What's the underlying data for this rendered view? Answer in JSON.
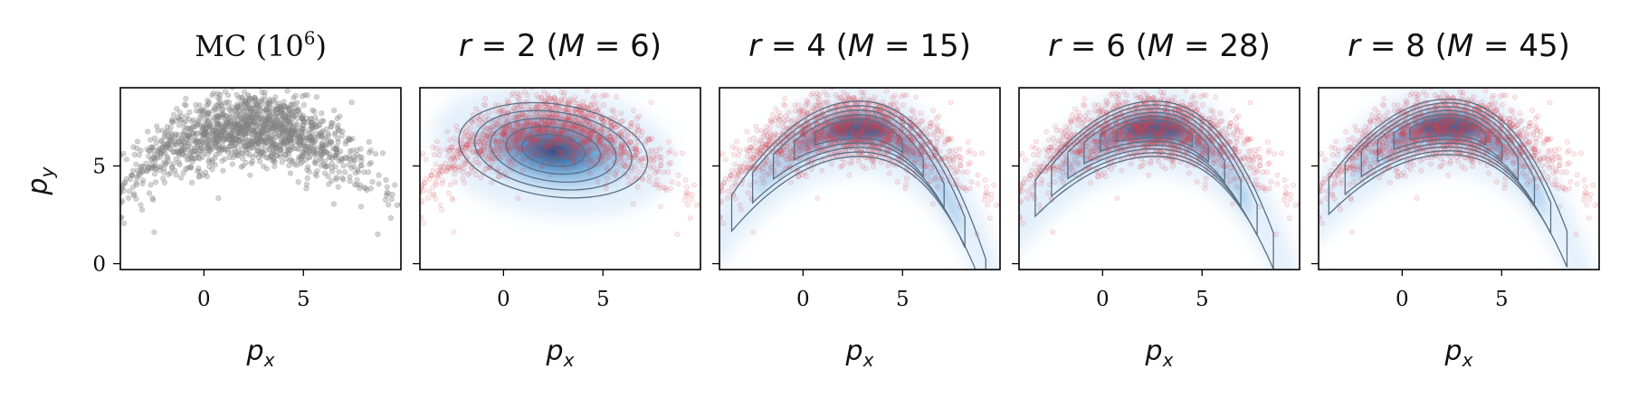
{
  "xlabel_base": "p",
  "xlabel_sub": "x",
  "ylabel_base": "p",
  "ylabel_sub": "y",
  "colors": {
    "mc_points": "#8c8c8c",
    "sample_points": "#d9404a",
    "density_fill": "#1f6fb5",
    "contour": "#5a6f86",
    "frame": "#000000"
  },
  "chart_data": [
    {
      "type": "scatter",
      "title": "MC (10",
      "title_sup": "6",
      "title_end": ")",
      "xlim": [
        -4.2,
        9.9
      ],
      "ylim": [
        -0.3,
        9.0
      ],
      "xticks": [
        0,
        5
      ],
      "yticks": [
        0,
        5
      ],
      "series": [
        {
          "style": "mc_points",
          "x": [],
          "y": []
        }
      ],
      "n_points": 1500,
      "distribution": "banana: x = 2.3 + 3.1*u, y = 7.0 + 0.9*v - 0.07*(x-2.3)^2"
    },
    {
      "type": "scatter",
      "title": "r = 2 (M = 6)",
      "title_parts": {
        "r": "2",
        "M": "6"
      },
      "xlim": [
        -4.2,
        9.9
      ],
      "ylim": [
        -0.3,
        9.0
      ],
      "xticks": [
        0,
        5
      ],
      "yticks": [
        0,
        5
      ],
      "density": {
        "shape": "ellipse",
        "center": [
          2.5,
          5.8
        ],
        "sx": 3.5,
        "sy": 1.5,
        "rotation_deg": -8
      },
      "contours": 6
    },
    {
      "type": "scatter",
      "title": "r = 4 (M = 15)",
      "title_parts": {
        "r": "4",
        "M": "15"
      },
      "xlim": [
        -4.2,
        9.9
      ],
      "ylim": [
        -0.3,
        9.0
      ],
      "xticks": [
        0,
        5
      ],
      "yticks": [
        0,
        5
      ],
      "density": {
        "shape": "banana",
        "center": [
          2.8,
          6.9
        ],
        "width": 3.2,
        "curvature": 0.08
      },
      "contours": 5
    },
    {
      "type": "scatter",
      "title": "r = 6 (M = 28)",
      "title_parts": {
        "r": "6",
        "M": "28"
      },
      "xlim": [
        -4.2,
        9.9
      ],
      "ylim": [
        -0.3,
        9.0
      ],
      "xticks": [
        0,
        5
      ],
      "yticks": [
        0,
        5
      ],
      "density": {
        "shape": "banana",
        "center": [
          2.6,
          6.9
        ],
        "width": 3.0,
        "curvature": 0.075
      },
      "contours": 6
    },
    {
      "type": "scatter",
      "title": "r = 8 (M = 45)",
      "title_parts": {
        "r": "8",
        "M": "45"
      },
      "xlim": [
        -4.2,
        9.9
      ],
      "ylim": [
        -0.3,
        9.0
      ],
      "xticks": [
        0,
        5
      ],
      "yticks": [
        0,
        5
      ],
      "density": {
        "shape": "banana",
        "center": [
          2.3,
          7.0
        ],
        "width": 3.0,
        "curvature": 0.075
      },
      "contours": 6
    }
  ]
}
